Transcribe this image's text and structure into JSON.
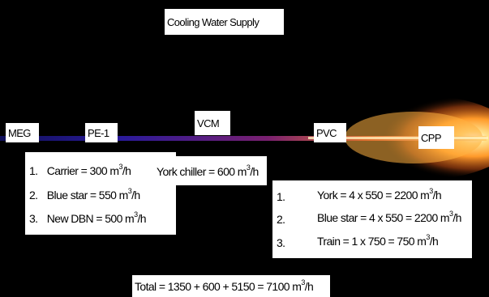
{
  "title": "Cooling Water Supply",
  "nodes": {
    "meg": "MEG",
    "pe1": "PE-1",
    "vcm": "VCM",
    "pvc": "PVC",
    "cpp": "CPP"
  },
  "left_list": [
    {
      "num": "1.",
      "text": "Carrier = 300 m",
      "unit_sup": "3",
      "unit_tail": "/h"
    },
    {
      "num": "2.",
      "text": "Blue star = 550 m",
      "unit_sup": "3",
      "unit_tail": "/h"
    },
    {
      "num": "3.",
      "text": "New DBN = 500 m",
      "unit_sup": "3",
      "unit_tail": "/h"
    }
  ],
  "vcm_note": {
    "text": "York chiller = 600 m",
    "unit_sup": "3",
    "unit_tail": "/h"
  },
  "right_list": [
    {
      "num": "1.",
      "text": "York = 4 x 550 = 2200 m",
      "unit_sup": "3",
      "unit_tail": "/h"
    },
    {
      "num": "2.",
      "text": "Blue star = 4 x 550 = 2200 m",
      "unit_sup": "3",
      "unit_tail": "/h"
    },
    {
      "num": "3.",
      "text": "Train = 1 x 750 = 750 m",
      "unit_sup": "3",
      "unit_tail": "/h"
    }
  ],
  "total": {
    "text": "Total = 1350 + 600 + 5150 = 7100 m",
    "unit_sup": "3",
    "unit_tail": "/h"
  },
  "colors": {
    "background": "#000000",
    "pipe_start": "#1a1a8c",
    "pipe_mid": "#6a1a8a",
    "pipe_glow": "#ff9a2a",
    "pipe_core": "#ffffff"
  }
}
